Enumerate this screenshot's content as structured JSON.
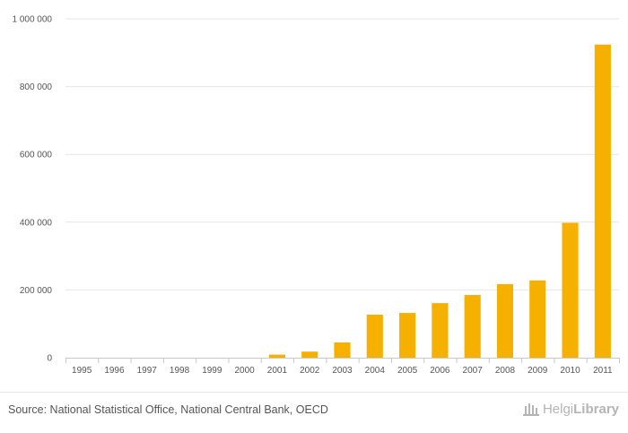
{
  "chart_data": {
    "type": "bar",
    "title": "",
    "xlabel": "",
    "ylabel": "",
    "categories": [
      "1995",
      "1996",
      "1997",
      "1998",
      "1999",
      "2000",
      "2001",
      "2002",
      "2003",
      "2004",
      "2005",
      "2006",
      "2007",
      "2008",
      "2009",
      "2010",
      "2011"
    ],
    "values": [
      0,
      0,
      0,
      0,
      0,
      0,
      9000,
      18000,
      45000,
      127000,
      132000,
      161000,
      185000,
      217000,
      228000,
      398000,
      924000
    ],
    "ylim": [
      0,
      1000000
    ],
    "yticks": [
      0,
      200000,
      400000,
      600000,
      800000,
      1000000
    ],
    "ytick_labels": [
      "0",
      "200 000",
      "400 000",
      "600 000",
      "800 000",
      "1 000 000"
    ],
    "grid": true,
    "bar_color": "#f5b000"
  },
  "footer": {
    "source": "Source: National Statistical Office, National Central Bank, OECD",
    "brand_helgi": "Helgi",
    "brand_library": "Library"
  },
  "colors": {
    "bar": "#f5b000",
    "grid": "#e6e6e6",
    "text": "#555555",
    "brand": "#b4b4b4"
  }
}
